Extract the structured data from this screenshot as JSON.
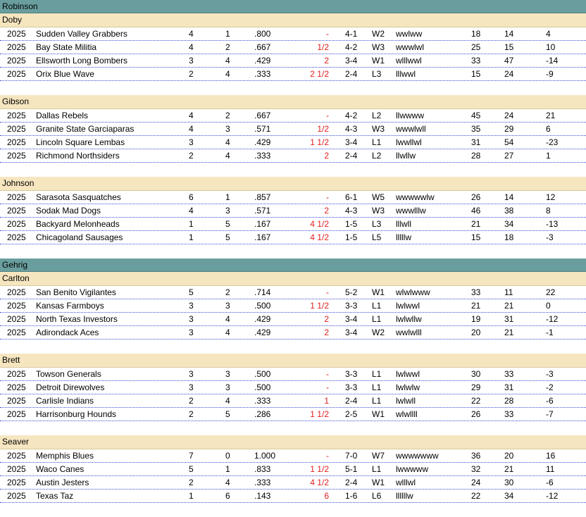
{
  "leagues": [
    {
      "name": "Robinson",
      "divisions": [
        {
          "name": "Doby",
          "teams": [
            {
              "year": "2025",
              "name": "Sudden Valley Grabbers",
              "w": "4",
              "l": "1",
              "pct": ".800",
              "gb": "-",
              "rec": "4-1",
              "strk": "W2",
              "last": "wwlww",
              "rs": "18",
              "ra": "14",
              "diff": "4"
            },
            {
              "year": "2025",
              "name": "Bay State Militia",
              "w": "4",
              "l": "2",
              "pct": ".667",
              "gb": "1/2",
              "rec": "4-2",
              "strk": "W3",
              "last": "wwwlwl",
              "rs": "25",
              "ra": "15",
              "diff": "10"
            },
            {
              "year": "2025",
              "name": "Ellsworth Long Bombers",
              "w": "3",
              "l": "4",
              "pct": ".429",
              "gb": "2",
              "rec": "3-4",
              "strk": "W1",
              "last": "wlllwwl",
              "rs": "33",
              "ra": "47",
              "diff": "-14"
            },
            {
              "year": "2025",
              "name": "Orix  Blue Wave",
              "w": "2",
              "l": "4",
              "pct": ".333",
              "gb": "2 1/2",
              "rec": "2-4",
              "strk": "L3",
              "last": "lllwwl",
              "rs": "15",
              "ra": "24",
              "diff": "-9"
            }
          ]
        },
        {
          "name": "Gibson",
          "teams": [
            {
              "year": "2025",
              "name": "Dallas Rebels",
              "w": "4",
              "l": "2",
              "pct": ".667",
              "gb": "-",
              "rec": "4-2",
              "strk": "L2",
              "last": "llwwww",
              "rs": "45",
              "ra": "24",
              "diff": "21"
            },
            {
              "year": "2025",
              "name": "Granite State Garciaparas",
              "w": "4",
              "l": "3",
              "pct": ".571",
              "gb": "1/2",
              "rec": "4-3",
              "strk": "W3",
              "last": "wwwlwll",
              "rs": "35",
              "ra": "29",
              "diff": "6"
            },
            {
              "year": "2025",
              "name": "Lincoln Square Lembas",
              "w": "3",
              "l": "4",
              "pct": ".429",
              "gb": "1 1/2",
              "rec": "3-4",
              "strk": "L1",
              "last": "lwwllwl",
              "rs": "31",
              "ra": "54",
              "diff": "-23"
            },
            {
              "year": "2025",
              "name": "Richmond Northsiders",
              "w": "2",
              "l": "4",
              "pct": ".333",
              "gb": "2",
              "rec": "2-4",
              "strk": "L2",
              "last": "llwllw",
              "rs": "28",
              "ra": "27",
              "diff": "1"
            }
          ]
        },
        {
          "name": "Johnson",
          "teams": [
            {
              "year": "2025",
              "name": "Sarasota Sasquatches",
              "w": "6",
              "l": "1",
              "pct": ".857",
              "gb": "-",
              "rec": "6-1",
              "strk": "W5",
              "last": "wwwwwlw",
              "rs": "26",
              "ra": "14",
              "diff": "12"
            },
            {
              "year": "2025",
              "name": "Sodak Mad Dogs",
              "w": "4",
              "l": "3",
              "pct": ".571",
              "gb": "2",
              "rec": "4-3",
              "strk": "W3",
              "last": "wwwlllw",
              "rs": "46",
              "ra": "38",
              "diff": "8"
            },
            {
              "year": "2025",
              "name": "Backyard Melonheads",
              "w": "1",
              "l": "5",
              "pct": ".167",
              "gb": "4 1/2",
              "rec": "1-5",
              "strk": "L3",
              "last": "lllwll",
              "rs": "21",
              "ra": "34",
              "diff": "-13"
            },
            {
              "year": "2025",
              "name": "Chicagoland Sausages",
              "w": "1",
              "l": "5",
              "pct": ".167",
              "gb": "4 1/2",
              "rec": "1-5",
              "strk": "L5",
              "last": "lllllw",
              "rs": "15",
              "ra": "18",
              "diff": "-3"
            }
          ]
        }
      ]
    },
    {
      "name": "Gehrig",
      "divisions": [
        {
          "name": "Carlton",
          "teams": [
            {
              "year": "2025",
              "name": "San Benito Vigilantes",
              "w": "5",
              "l": "2",
              "pct": ".714",
              "gb": "-",
              "rec": "5-2",
              "strk": "W1",
              "last": "wlwlwww",
              "rs": "33",
              "ra": "11",
              "diff": "22"
            },
            {
              "year": "2025",
              "name": "Kansas Farmboys",
              "w": "3",
              "l": "3",
              "pct": ".500",
              "gb": "1 1/2",
              "rec": "3-3",
              "strk": "L1",
              "last": "lwlwwl",
              "rs": "21",
              "ra": "21",
              "diff": "0"
            },
            {
              "year": "2025",
              "name": "North Texas Investors",
              "w": "3",
              "l": "4",
              "pct": ".429",
              "gb": "2",
              "rec": "3-4",
              "strk": "L1",
              "last": "lwlwllw",
              "rs": "19",
              "ra": "31",
              "diff": "-12"
            },
            {
              "year": "2025",
              "name": "Adirondack Aces",
              "w": "3",
              "l": "4",
              "pct": ".429",
              "gb": "2",
              "rec": "3-4",
              "strk": "W2",
              "last": "wwlwlll",
              "rs": "20",
              "ra": "21",
              "diff": "-1"
            }
          ]
        },
        {
          "name": "Brett",
          "teams": [
            {
              "year": "2025",
              "name": "Towson  Generals",
              "w": "3",
              "l": "3",
              "pct": ".500",
              "gb": "-",
              "rec": "3-3",
              "strk": "L1",
              "last": "lwlwwl",
              "rs": "30",
              "ra": "33",
              "diff": "-3"
            },
            {
              "year": "2025",
              "name": "Detroit Direwolves",
              "w": "3",
              "l": "3",
              "pct": ".500",
              "gb": "-",
              "rec": "3-3",
              "strk": "L1",
              "last": "lwlwlw",
              "rs": "29",
              "ra": "31",
              "diff": "-2"
            },
            {
              "year": "2025",
              "name": "Carlisle Indians",
              "w": "2",
              "l": "4",
              "pct": ".333",
              "gb": "1",
              "rec": "2-4",
              "strk": "L1",
              "last": "lwlwll",
              "rs": "22",
              "ra": "28",
              "diff": "-6"
            },
            {
              "year": "2025",
              "name": "Harrisonburg Hounds",
              "w": "2",
              "l": "5",
              "pct": ".286",
              "gb": "1 1/2",
              "rec": "2-5",
              "strk": "W1",
              "last": "wlwllll",
              "rs": "26",
              "ra": "33",
              "diff": "-7"
            }
          ]
        },
        {
          "name": "Seaver",
          "teams": [
            {
              "year": "2025",
              "name": "Memphis Blues",
              "w": "7",
              "l": "0",
              "pct": "1.000",
              "gb": "-",
              "rec": "7-0",
              "strk": "W7",
              "last": "wwwwwww",
              "rs": "36",
              "ra": "20",
              "diff": "16"
            },
            {
              "year": "2025",
              "name": "Waco Canes",
              "w": "5",
              "l": "1",
              "pct": ".833",
              "gb": "1 1/2",
              "rec": "5-1",
              "strk": "L1",
              "last": "lwwwww",
              "rs": "32",
              "ra": "21",
              "diff": "11"
            },
            {
              "year": "2025",
              "name": "Austin Jesters",
              "w": "2",
              "l": "4",
              "pct": ".333",
              "gb": "4 1/2",
              "rec": "2-4",
              "strk": "W1",
              "last": "wlllwl",
              "rs": "24",
              "ra": "30",
              "diff": "-6"
            },
            {
              "year": "2025",
              "name": "Texas Taz",
              "w": "1",
              "l": "6",
              "pct": ".143",
              "gb": "6",
              "rec": "1-6",
              "strk": "L6",
              "last": "llllllw",
              "rs": "22",
              "ra": "34",
              "diff": "-12"
            }
          ]
        }
      ]
    }
  ]
}
